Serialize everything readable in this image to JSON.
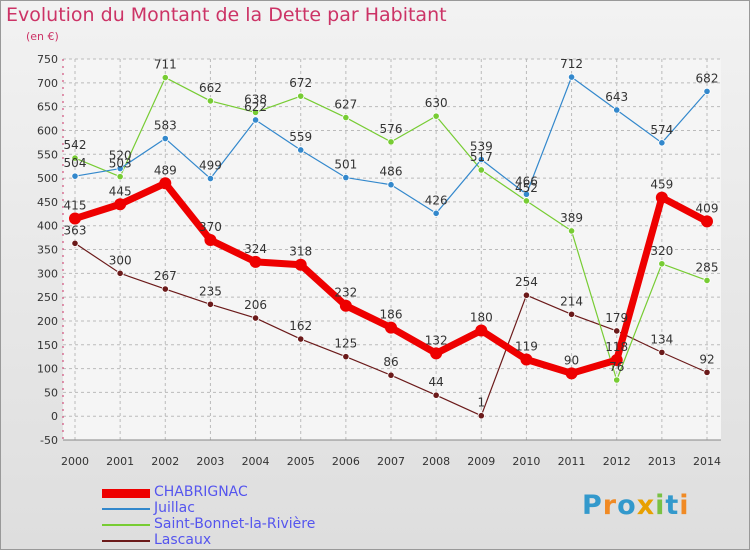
{
  "title": "Evolution du Montant de la Dette par Habitant",
  "subtitle": "(en €)",
  "logo": {
    "letters": [
      "P",
      "r",
      "o",
      "x",
      "i",
      "t",
      "i"
    ],
    "colors": [
      "#3399cc",
      "#f08a24",
      "#3399cc",
      "#e8a000",
      "#7ac143",
      "#3399cc",
      "#f08a24"
    ]
  },
  "chart_data": {
    "type": "line",
    "title": "Evolution du Montant de la Dette par Habitant",
    "ylabel": "(en €)",
    "xlabel": "",
    "categories": [
      "2000",
      "2001",
      "2002",
      "2003",
      "2004",
      "2005",
      "2006",
      "2007",
      "2008",
      "2009",
      "2010",
      "2011",
      "2012",
      "2013",
      "2014"
    ],
    "ylim": [
      -50,
      750
    ],
    "yticks": [
      "750",
      "700",
      "650",
      "600",
      "550",
      "500",
      "450",
      "400",
      "350",
      "300",
      "250",
      "200",
      "150",
      "100",
      "50",
      "0",
      "-50"
    ],
    "grid": true,
    "legend_position": "bottom-left",
    "series": [
      {
        "name": "CHABRIGNAC",
        "color": "#ee0000",
        "values": [
          415,
          445,
          489,
          370,
          324,
          318,
          232,
          186,
          132,
          180,
          119,
          90,
          118,
          459,
          409
        ],
        "labels": [
          "415",
          "445",
          "489",
          "370",
          "324",
          "318",
          "232",
          "186",
          "132",
          "180",
          "119",
          "90",
          "118",
          "459",
          "409"
        ]
      },
      {
        "name": "Juillac",
        "color": "#3388cc",
        "values": [
          504,
          520,
          583,
          499,
          622,
          559,
          501,
          486,
          426,
          539,
          466,
          712,
          643,
          574,
          682
        ],
        "labels": [
          "504",
          "520",
          "583",
          "499",
          "622",
          "559",
          "501",
          "486",
          "426",
          "539",
          "466",
          "712",
          "643",
          "574",
          "682"
        ]
      },
      {
        "name": "Saint-Bonnet-la-Rivière",
        "color": "#77cc33",
        "values": [
          542,
          503,
          711,
          662,
          638,
          672,
          627,
          576,
          630,
          517,
          452,
          389,
          76,
          320,
          285
        ],
        "labels": [
          "542",
          "503",
          "711",
          "662",
          "638",
          "672",
          "627",
          "576",
          "630",
          "517",
          "452",
          "389",
          "76",
          "320",
          "285"
        ]
      },
      {
        "name": "Lascaux",
        "color": "#6b1a1a",
        "values": [
          363,
          300,
          267,
          235,
          206,
          162,
          125,
          86,
          44,
          1,
          254,
          214,
          179,
          134,
          92
        ],
        "labels": [
          "363",
          "300",
          "267",
          "235",
          "206",
          "162",
          "125",
          "86",
          "44",
          "1",
          "254",
          "214",
          "179",
          "134",
          "92"
        ]
      }
    ]
  }
}
